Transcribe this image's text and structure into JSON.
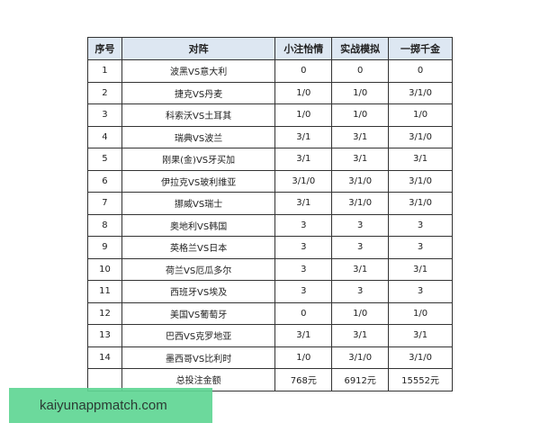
{
  "table": {
    "headers": [
      "序号",
      "对阵",
      "小注怡情",
      "实战模拟",
      "一掷千金"
    ],
    "rows": [
      [
        "1",
        "波黑VS意大利",
        "0",
        "0",
        "0"
      ],
      [
        "2",
        "捷克VS丹麦",
        "1/0",
        "1/0",
        "3/1/0"
      ],
      [
        "3",
        "科索沃VS土耳其",
        "1/0",
        "1/0",
        "1/0"
      ],
      [
        "4",
        "瑞典VS波兰",
        "3/1",
        "3/1",
        "3/1/0"
      ],
      [
        "5",
        "刚果(金)VS牙买加",
        "3/1",
        "3/1",
        "3/1"
      ],
      [
        "6",
        "伊拉克VS玻利维亚",
        "3/1/0",
        "3/1/0",
        "3/1/0"
      ],
      [
        "7",
        "挪威VS瑞士",
        "3/1",
        "3/1/0",
        "3/1/0"
      ],
      [
        "8",
        "奥地利VS韩国",
        "3",
        "3",
        "3"
      ],
      [
        "9",
        "英格兰VS日本",
        "3",
        "3",
        "3"
      ],
      [
        "10",
        "荷兰VS厄瓜多尔",
        "3",
        "3/1",
        "3/1"
      ],
      [
        "11",
        "西班牙VS埃及",
        "3",
        "3",
        "3"
      ],
      [
        "12",
        "美国VS葡萄牙",
        "0",
        "1/0",
        "1/0"
      ],
      [
        "13",
        "巴西VS克罗地亚",
        "3/1",
        "3/1",
        "3/1"
      ],
      [
        "14",
        "墨西哥VS比利时",
        "1/0",
        "3/1/0",
        "3/1/0"
      ]
    ],
    "total": [
      "",
      "总投注金额",
      "768元",
      "6912元",
      "15552元"
    ]
  },
  "watermark": {
    "text": "kaiyunappmatch.com",
    "color": "#60d694"
  }
}
